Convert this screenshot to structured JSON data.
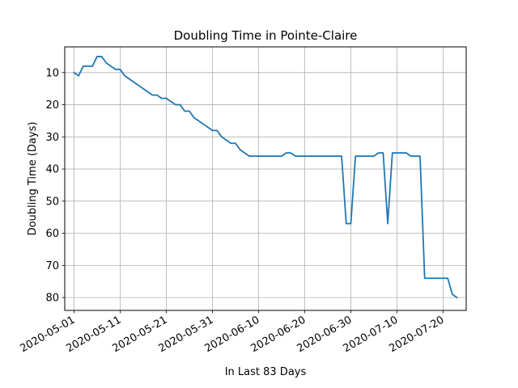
{
  "chart_data": {
    "type": "line",
    "title": "Doubling Time in  Pointe-Claire",
    "xlabel": "In Last 83 Days",
    "ylabel": "Doubling Time (Days)",
    "y_inverted": true,
    "ylim": [
      2,
      84
    ],
    "xlim": [
      "2020-04-29",
      "2020-07-25"
    ],
    "yticks": [
      10,
      20,
      30,
      40,
      50,
      60,
      70,
      80
    ],
    "xticks": [
      "2020-05-01",
      "2020-05-11",
      "2020-05-21",
      "2020-05-31",
      "2020-06-10",
      "2020-06-20",
      "2020-06-30",
      "2020-07-10",
      "2020-07-20"
    ],
    "grid": true,
    "line_color": "#1f77b4",
    "series": [
      {
        "x": [
          "2020-05-01",
          "2020-05-02",
          "2020-05-03",
          "2020-05-04",
          "2020-05-05",
          "2020-05-06",
          "2020-05-07",
          "2020-05-08",
          "2020-05-09",
          "2020-05-10",
          "2020-05-11",
          "2020-05-12",
          "2020-05-18",
          "2020-05-19",
          "2020-05-20",
          "2020-05-21",
          "2020-05-22",
          "2020-05-23",
          "2020-05-24",
          "2020-05-25",
          "2020-05-26",
          "2020-05-27",
          "2020-05-31",
          "2020-06-01",
          "2020-06-02",
          "2020-06-03",
          "2020-06-04",
          "2020-06-05",
          "2020-06-06",
          "2020-06-07",
          "2020-06-08",
          "2020-06-14",
          "2020-06-15",
          "2020-06-16",
          "2020-06-17",
          "2020-06-18",
          "2020-06-28",
          "2020-06-29",
          "2020-06-30",
          "2020-07-01",
          "2020-07-05",
          "2020-07-06",
          "2020-07-07",
          "2020-07-08",
          "2020-07-09",
          "2020-07-12",
          "2020-07-13",
          "2020-07-15",
          "2020-07-16",
          "2020-07-21",
          "2020-07-22",
          "2020-07-23"
        ],
        "values": [
          10,
          11,
          8,
          8,
          8,
          5,
          5,
          7,
          8,
          9,
          9,
          11,
          17,
          17,
          18,
          18,
          19,
          20,
          20,
          22,
          22,
          24,
          28,
          28,
          30,
          31,
          32,
          32,
          34,
          35,
          36,
          36,
          36,
          35,
          35,
          36,
          36,
          57,
          57,
          36,
          36,
          35,
          35,
          57,
          35,
          35,
          36,
          36,
          74,
          74,
          79,
          80
        ]
      }
    ]
  }
}
